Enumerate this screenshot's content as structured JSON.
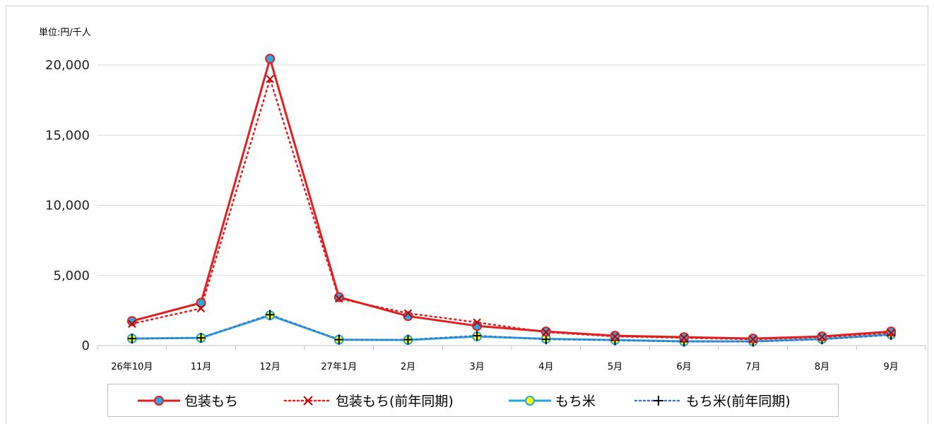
{
  "unit_label": "単位:円/千人",
  "colors": {
    "mochi": "#e02020",
    "mochi_prev": "#e02020",
    "mochi_prev_marker": "#c00000",
    "rice": "#22a8e0",
    "rice_prev": "#4472c4",
    "marker_blue_fill": "#2aa8e0",
    "marker_yellow_fill": "#ffff00",
    "grid": "#d9d9d9",
    "axis": "#bfbfbf"
  },
  "chart_data": {
    "type": "line",
    "categories": [
      "26年10月",
      "11月",
      "12月",
      "27年1月",
      "2月",
      "3月",
      "4月",
      "5月",
      "6月",
      "7月",
      "8月",
      "9月"
    ],
    "y_ticks": [
      "0",
      "5,000",
      "10,000",
      "15,000",
      "20,000"
    ],
    "ylim": [
      0,
      20000
    ],
    "grid": true,
    "legend_position": "bottom",
    "series": [
      {
        "name": "包装もち",
        "style": "solid",
        "marker": "circle-blue",
        "values": [
          1750,
          3050,
          20450,
          3450,
          2100,
          1400,
          1000,
          700,
          600,
          500,
          650,
          1000
        ]
      },
      {
        "name": "包装もち(前年同期)",
        "style": "dotted",
        "marker": "x",
        "values": [
          1550,
          2650,
          19000,
          3350,
          2300,
          1650,
          950,
          650,
          550,
          450,
          600,
          900
        ]
      },
      {
        "name": "もち米",
        "style": "solid",
        "marker": "circle-yellow",
        "values": [
          500,
          550,
          2150,
          420,
          400,
          650,
          480,
          400,
          300,
          300,
          470,
          800
        ]
      },
      {
        "name": "もち米(前年同期)",
        "style": "dotted",
        "marker": "plus",
        "values": [
          500,
          550,
          2200,
          420,
          420,
          700,
          450,
          380,
          280,
          280,
          450,
          750
        ]
      }
    ]
  }
}
